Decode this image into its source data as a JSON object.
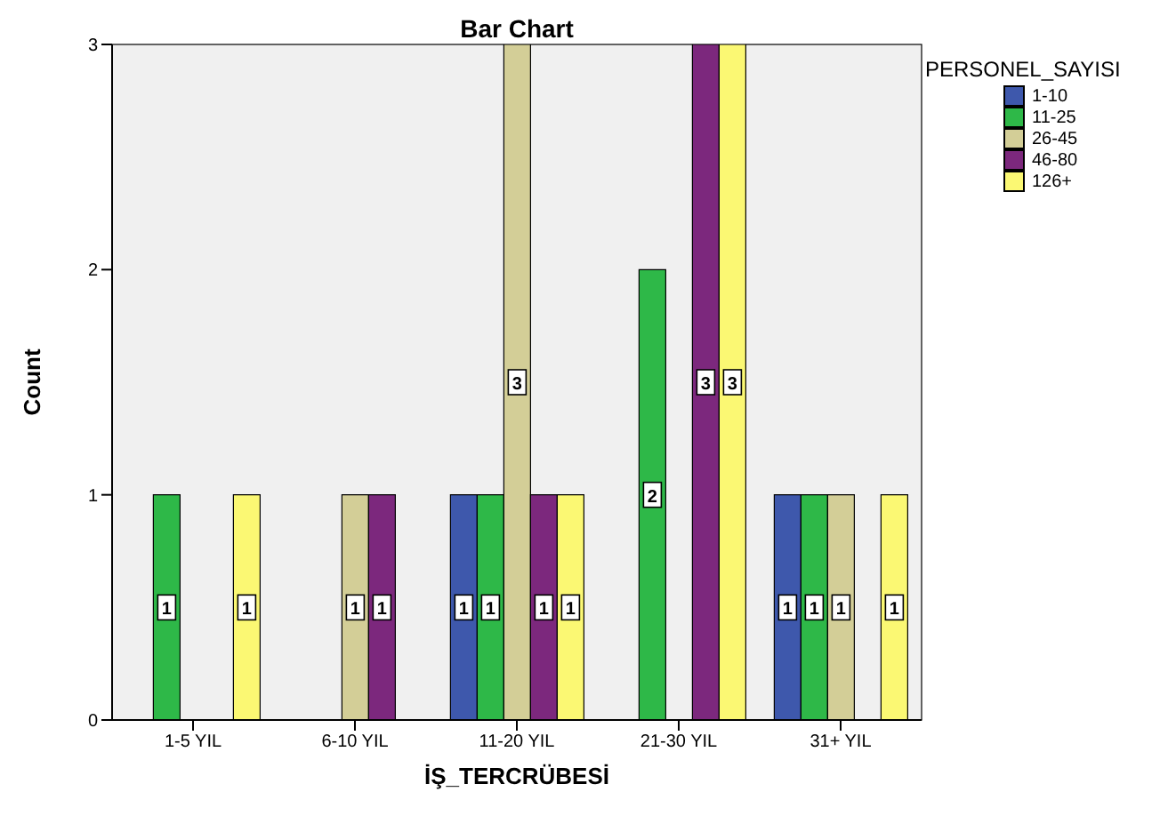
{
  "chart_data": {
    "type": "bar",
    "title": "Bar Chart",
    "xlabel": "İŞ_TERCRÜBESİ",
    "ylabel": "Count",
    "legend_title": "PERSONEL_SAYISI",
    "categories": [
      "1-5 YIL",
      "6-10 YIL",
      "11-20 YIL",
      "21-30 YIL",
      "31+ YIL"
    ],
    "series": [
      {
        "name": "1-10",
        "color": "#3e58ac",
        "values": [
          null,
          null,
          1,
          null,
          1
        ]
      },
      {
        "name": "11-25",
        "color": "#2eb848",
        "values": [
          1,
          null,
          1,
          2,
          1
        ]
      },
      {
        "name": "26-45",
        "color": "#d3ce97",
        "values": [
          null,
          1,
          3,
          null,
          1
        ]
      },
      {
        "name": "46-80",
        "color": "#7c287d",
        "values": [
          null,
          1,
          1,
          3,
          null
        ]
      },
      {
        "name": "126+",
        "color": "#fbf873",
        "values": [
          1,
          null,
          1,
          3,
          1
        ]
      }
    ],
    "ylim": [
      0,
      3
    ],
    "yticks": [
      0,
      1,
      2,
      3
    ],
    "legend": "top right",
    "data_labels": true
  }
}
